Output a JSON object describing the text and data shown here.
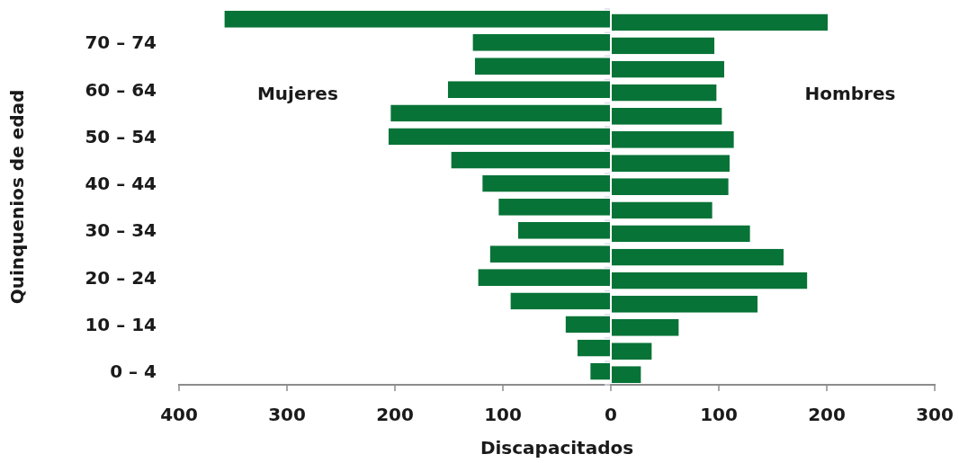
{
  "chart_data": {
    "type": "bar",
    "orientation": "horizontal",
    "xlabel": "Discapacitados",
    "ylabel": "Quinquenios de edad",
    "categories": [
      null,
      "70 – 74",
      null,
      "60 – 64",
      null,
      "50 – 54",
      null,
      "40 – 44",
      null,
      "30 – 34",
      null,
      "20 – 24",
      null,
      "10 – 14",
      null,
      "0 – 4"
    ],
    "series": [
      {
        "name": "Mujeres",
        "color": "#077337",
        "values": [
          -358,
          -128,
          -126,
          -151,
          -204,
          -206,
          -148,
          -119,
          -104,
          -86,
          -112,
          -123,
          -93,
          -42,
          -31,
          -19
        ]
      },
      {
        "name": "Hombres",
        "color": "#077337",
        "values": [
          201,
          96,
          105,
          98,
          103,
          114,
          110,
          109,
          94,
          129,
          160,
          182,
          136,
          63,
          38,
          28
        ]
      }
    ],
    "xlim": [
      -400,
      300
    ],
    "xticks": [
      {
        "value": -400,
        "label": "400"
      },
      {
        "value": -300,
        "label": "300"
      },
      {
        "value": -200,
        "label": "200"
      },
      {
        "value": -100,
        "label": "100"
      },
      0,
      100,
      200,
      300
    ],
    "grid": false,
    "legend": false
  }
}
